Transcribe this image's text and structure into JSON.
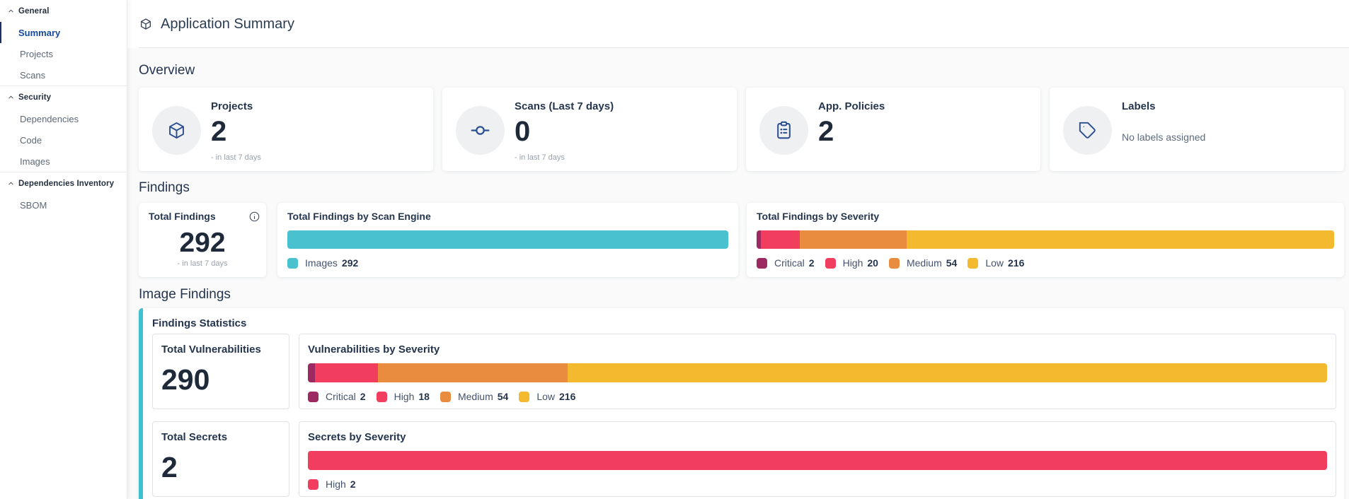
{
  "sidebar": {
    "groups": [
      {
        "label": "General",
        "items": [
          {
            "label": "Summary",
            "active": true
          },
          {
            "label": "Projects",
            "active": false
          },
          {
            "label": "Scans",
            "active": false
          }
        ]
      },
      {
        "label": "Security",
        "items": [
          {
            "label": "Dependencies",
            "active": false
          },
          {
            "label": "Code",
            "active": false
          },
          {
            "label": "Images",
            "active": false
          }
        ]
      },
      {
        "label": "Dependencies Inventory",
        "items": [
          {
            "label": "SBOM",
            "active": false
          }
        ]
      }
    ]
  },
  "header": {
    "title": "Application Summary",
    "icon": "cube-icon"
  },
  "overview": {
    "heading": "Overview",
    "cards": {
      "projects": {
        "title": "Projects",
        "value": "2",
        "caption": "- in last 7 days",
        "icon": "cube-icon"
      },
      "scans": {
        "title": "Scans (Last 7 days)",
        "value": "0",
        "caption": "- in last 7 days",
        "icon": "scan-icon"
      },
      "policies": {
        "title": "App. Policies",
        "value": "2",
        "icon": "clipboard-icon"
      },
      "labels": {
        "title": "Labels",
        "empty_text": "No labels assigned",
        "icon": "tag-icon"
      }
    }
  },
  "findings": {
    "heading": "Findings",
    "total": {
      "title": "Total Findings",
      "value": "292",
      "caption": "- in last 7 days"
    },
    "by_scan_engine": {
      "title": "Total Findings by Scan Engine",
      "segments": [
        {
          "label": "Images",
          "value": 292,
          "color": "#49c1cf"
        }
      ]
    },
    "by_severity": {
      "title": "Total Findings by Severity",
      "segments": [
        {
          "label": "Critical",
          "value": 2,
          "color": "#9c2962"
        },
        {
          "label": "High",
          "value": 20,
          "color": "#f23e5e"
        },
        {
          "label": "Medium",
          "value": 54,
          "color": "#e98c40"
        },
        {
          "label": "Low",
          "value": 216,
          "color": "#f3ba2f"
        }
      ]
    }
  },
  "image_findings": {
    "heading": "Image Findings",
    "panel_title": "Findings Statistics",
    "total_vulnerabilities": {
      "title": "Total Vulnerabilities",
      "value": "290"
    },
    "vulnerabilities_by_severity": {
      "title": "Vulnerabilities by Severity",
      "segments": [
        {
          "label": "Critical",
          "value": 2,
          "color": "#9c2962"
        },
        {
          "label": "High",
          "value": 18,
          "color": "#f23e5e"
        },
        {
          "label": "Medium",
          "value": 54,
          "color": "#e98c40"
        },
        {
          "label": "Low",
          "value": 216,
          "color": "#f3ba2f"
        }
      ]
    },
    "total_secrets": {
      "title": "Total Secrets",
      "value": "2"
    },
    "secrets_by_severity": {
      "title": "Secrets by Severity",
      "segments": [
        {
          "label": "High",
          "value": 2,
          "color": "#f23e5e"
        }
      ]
    }
  },
  "chart_data": [
    {
      "type": "bar",
      "title": "Total Findings by Scan Engine",
      "categories": [
        "Images"
      ],
      "values": [
        292
      ]
    },
    {
      "type": "bar",
      "title": "Total Findings by Severity",
      "categories": [
        "Critical",
        "High",
        "Medium",
        "Low"
      ],
      "values": [
        2,
        20,
        54,
        216
      ]
    },
    {
      "type": "bar",
      "title": "Vulnerabilities by Severity",
      "categories": [
        "Critical",
        "High",
        "Medium",
        "Low"
      ],
      "values": [
        2,
        18,
        54,
        216
      ]
    },
    {
      "type": "bar",
      "title": "Secrets by Severity",
      "categories": [
        "High"
      ],
      "values": [
        2
      ]
    }
  ],
  "colors": {
    "accent_teal": "#3fc0ce",
    "critical": "#9c2962",
    "high": "#f23e5e",
    "medium": "#e98c40",
    "low": "#f3ba2f",
    "images_engine": "#49c1cf"
  }
}
